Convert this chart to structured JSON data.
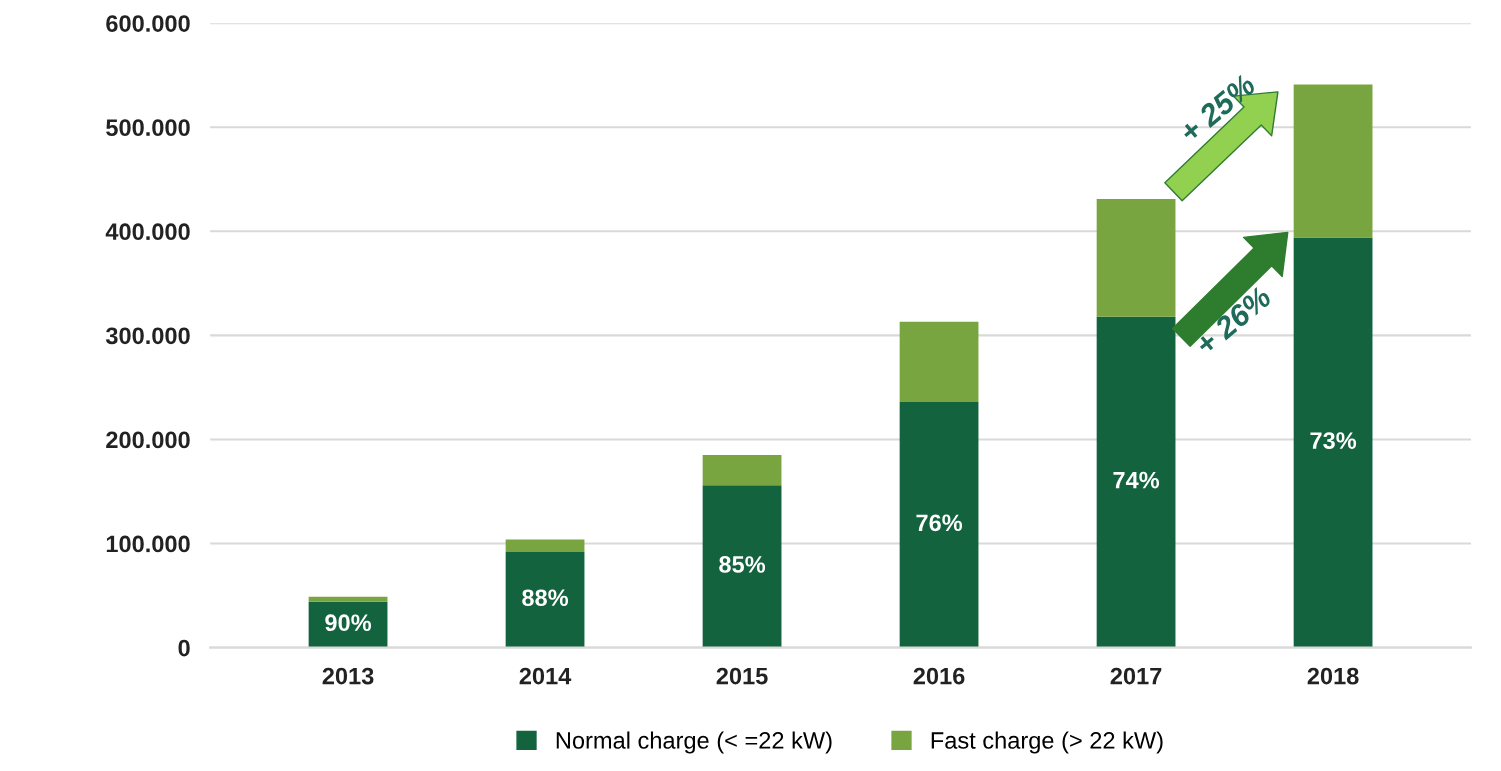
{
  "chart_data": {
    "type": "bar",
    "stacked": true,
    "categories": [
      "2013",
      "2014",
      "2015",
      "2016",
      "2017",
      "2018"
    ],
    "series": [
      {
        "name": "Normal charge (< =22 kW)",
        "color": "#14633f",
        "values": [
          44000,
          92000,
          156000,
          236000,
          318000,
          394000
        ]
      },
      {
        "name": "Fast charge (> 22 kW)",
        "color": "#79a540",
        "values": [
          5000,
          12000,
          29000,
          77000,
          113000,
          147000
        ]
      }
    ],
    "ylim": [
      0,
      600000
    ],
    "yticks": [
      {
        "value": 0,
        "label": "0"
      },
      {
        "value": 100000,
        "label": "100.000"
      },
      {
        "value": 200000,
        "label": "200.000"
      },
      {
        "value": 300000,
        "label": "300.000"
      },
      {
        "value": 400000,
        "label": "400.000"
      },
      {
        "value": 500000,
        "label": "500.000"
      },
      {
        "value": 600000,
        "label": "600.000"
      }
    ],
    "grid": "y",
    "legend": "bottom",
    "annotations": [
      "90%",
      "88%",
      "85%",
      "76%",
      "74%",
      "73%",
      "+ 25%",
      "+ 26%"
    ]
  }
}
